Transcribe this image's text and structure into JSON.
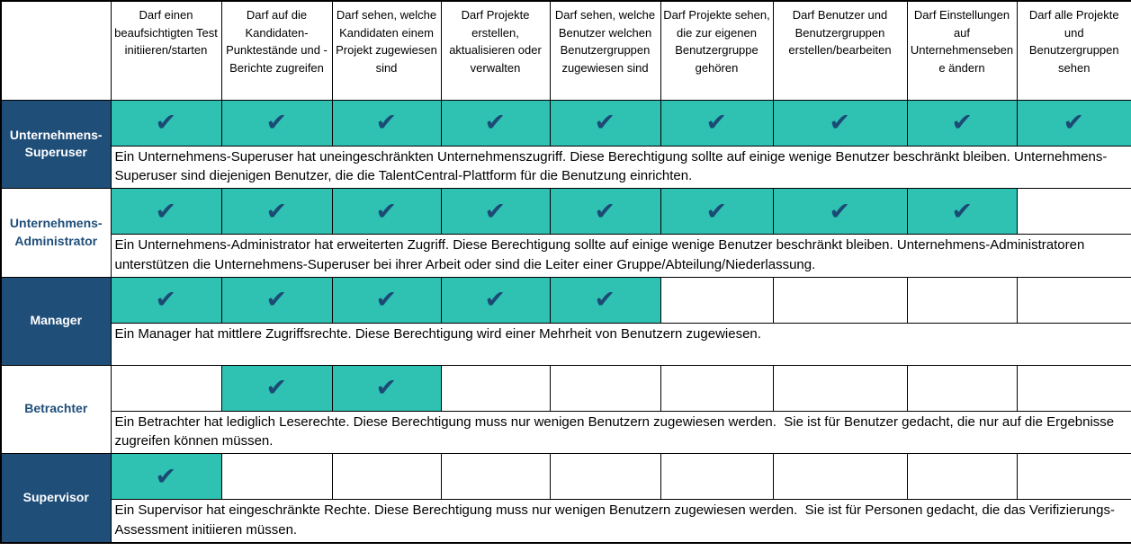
{
  "colors": {
    "navy": "#1F4E79",
    "teal": "#2FC2B3",
    "check": "#1B4A74",
    "border": "#000000"
  },
  "check_glyph": "✔",
  "table": {
    "corner_label": "",
    "columns": [
      "Darf einen beaufsichtigten Test initiieren/starten",
      "Darf auf die Kandidaten-Punktestände und -Berichte zugreifen",
      "Darf sehen, welche Kandidaten einem Projekt zugewiesen sind",
      "Darf Projekte erstellen, aktualisieren oder verwalten",
      "Darf sehen, welche Benutzer welchen Benutzergruppen zugewiesen sind",
      "Darf Projekte sehen, die zur eigenen Benutzergruppe gehören",
      "Darf Benutzer und Benutzergruppen erstellen/bearbeiten",
      "Darf Einstellungen auf Unternehmensebene ändern",
      "Darf alle Projekte und Benutzergruppen sehen"
    ],
    "roles": [
      {
        "name": "Unternehmens-Superuser",
        "label_variant": "navy",
        "checks": [
          true,
          true,
          true,
          true,
          true,
          true,
          true,
          true,
          true
        ],
        "description": "Ein Unternehmens-Superuser hat uneingeschränkten Unternehmenszugriff. Diese Berechtigung sollte auf einige wenige Benutzer beschränkt bleiben. Unternehmens-Superuser sind diejenigen Benutzer, die die TalentCentral-Plattform für die Benutzung einrichten."
      },
      {
        "name": "Unternehmens-Administrator",
        "label_variant": "white",
        "checks": [
          true,
          true,
          true,
          true,
          true,
          true,
          true,
          true,
          false
        ],
        "description": "Ein Unternehmens-Administrator hat erweiterten Zugriff. Diese Berechtigung sollte auf einige wenige Benutzer beschränkt bleiben. Unternehmens-Administratoren unterstützen die Unternehmens-Superuser bei ihrer Arbeit oder sind die Leiter einer Gruppe/Abteilung/Niederlassung."
      },
      {
        "name": "Manager",
        "label_variant": "navy",
        "checks": [
          true,
          true,
          true,
          true,
          true,
          false,
          false,
          false,
          false
        ],
        "description": "Ein Manager hat mittlere Zugriffsrechte. Diese Berechtigung wird einer Mehrheit von Benutzern zugewiesen."
      },
      {
        "name": "Betrachter",
        "label_variant": "white",
        "checks": [
          false,
          true,
          true,
          false,
          false,
          false,
          false,
          false,
          false
        ],
        "description": "Ein Betrachter hat lediglich Leserechte. Diese Berechtigung muss nur wenigen Benutzern zugewiesen werden.  Sie ist für Benutzer gedacht, die nur auf die Ergebnisse zugreifen können müssen."
      },
      {
        "name": "Supervisor",
        "label_variant": "navy",
        "checks": [
          true,
          false,
          false,
          false,
          false,
          false,
          false,
          false,
          false
        ],
        "description": "Ein Supervisor hat eingeschränkte Rechte. Diese Berechtigung muss nur wenigen Benutzern zugewiesen werden.  Sie ist für Personen gedacht, die das Verifizierungs-Assessment initiieren müssen."
      }
    ]
  }
}
